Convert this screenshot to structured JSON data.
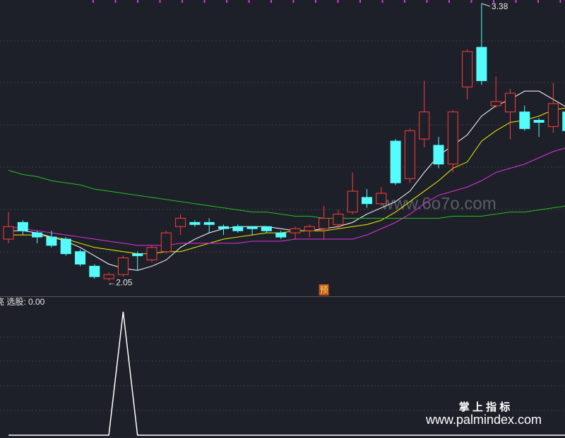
{
  "chart_data": [
    {
      "type": "candlestick",
      "ylim": [
        1.976,
        3.397
      ],
      "open": [
        2.25,
        2.33,
        2.28,
        2.26,
        2.25,
        2.19,
        2.12,
        2.06,
        2.08,
        2.18,
        2.15,
        2.19,
        2.31,
        2.33,
        2.33,
        2.31,
        2.31,
        2.31,
        2.31,
        2.28,
        2.28,
        2.29,
        2.3,
        2.32,
        2.38,
        2.45,
        2.42,
        2.72,
        2.54,
        2.73,
        2.7,
        2.61,
        2.98,
        3.17,
        2.89,
        2.86,
        2.86,
        2.82,
        2.79,
        2.86
      ],
      "high": [
        2.38,
        2.34,
        2.29,
        2.29,
        2.26,
        2.2,
        2.13,
        2.09,
        2.17,
        2.19,
        2.22,
        2.29,
        2.37,
        2.34,
        2.35,
        2.32,
        2.32,
        2.31,
        2.31,
        2.29,
        2.31,
        2.32,
        2.41,
        2.39,
        2.57,
        2.49,
        2.5,
        2.73,
        2.78,
        3.01,
        2.74,
        2.87,
        3.16,
        3.38,
        3.03,
        2.97,
        2.89,
        2.83,
        3.0,
        2.87
      ],
      "low": [
        2.23,
        2.27,
        2.23,
        2.21,
        2.17,
        2.12,
        2.06,
        2.05,
        2.07,
        2.1,
        2.14,
        2.18,
        2.27,
        2.31,
        2.28,
        2.27,
        2.28,
        2.27,
        2.28,
        2.25,
        2.25,
        2.26,
        2.25,
        2.3,
        2.37,
        2.4,
        2.41,
        2.51,
        2.52,
        2.69,
        2.59,
        2.57,
        2.92,
        2.99,
        2.88,
        2.73,
        2.77,
        2.74,
        2.76,
        2.76
      ],
      "close": [
        2.31,
        2.29,
        2.26,
        2.22,
        2.18,
        2.13,
        2.07,
        2.08,
        2.16,
        2.17,
        2.21,
        2.28,
        2.35,
        2.32,
        2.32,
        2.3,
        2.29,
        2.3,
        2.29,
        2.26,
        2.3,
        2.31,
        2.35,
        2.37,
        2.48,
        2.42,
        2.47,
        2.52,
        2.77,
        2.86,
        2.61,
        2.86,
        3.15,
        3.01,
        2.91,
        2.95,
        2.78,
        2.81,
        2.9,
        2.77
      ],
      "up_color": "#ff3c3c",
      "down_color": "#54fcfc",
      "series": [
        {
          "color": "#ffffff",
          "values": [
            2.29,
            2.29,
            2.28,
            2.26,
            2.24,
            2.21,
            2.17,
            2.13,
            2.11,
            2.1,
            2.12,
            2.15,
            2.21,
            2.25,
            2.28,
            2.3,
            2.31,
            2.31,
            2.31,
            2.3,
            2.29,
            2.29,
            2.3,
            2.31,
            2.33,
            2.37,
            2.4,
            2.43,
            2.48,
            2.57,
            2.65,
            2.7,
            2.75,
            2.84,
            2.89,
            2.92,
            2.96,
            2.96,
            2.92,
            2.88
          ]
        },
        {
          "color": "#f0f000",
          "values": [
            2.27,
            2.27,
            2.27,
            2.26,
            2.25,
            2.23,
            2.21,
            2.2,
            2.19,
            2.18,
            2.18,
            2.19,
            2.19,
            2.21,
            2.23,
            2.25,
            2.26,
            2.27,
            2.28,
            2.28,
            2.29,
            2.29,
            2.29,
            2.3,
            2.31,
            2.32,
            2.34,
            2.38,
            2.43,
            2.48,
            2.53,
            2.59,
            2.62,
            2.72,
            2.77,
            2.81,
            2.82,
            2.84,
            2.87,
            2.88
          ]
        },
        {
          "color": "#e030e0",
          "values": [
            2.31,
            2.3,
            2.29,
            2.28,
            2.27,
            2.26,
            2.25,
            2.24,
            2.23,
            2.22,
            2.22,
            2.22,
            2.23,
            2.23,
            2.23,
            2.23,
            2.23,
            2.24,
            2.24,
            2.24,
            2.25,
            2.25,
            2.25,
            2.25,
            2.25,
            2.27,
            2.3,
            2.33,
            2.37,
            2.42,
            2.46,
            2.48,
            2.5,
            2.53,
            2.57,
            2.59,
            2.61,
            2.64,
            2.67,
            2.69
          ]
        },
        {
          "color": "#20c020",
          "values": [
            2.58,
            2.56,
            2.55,
            2.53,
            2.52,
            2.51,
            2.49,
            2.48,
            2.47,
            2.46,
            2.45,
            2.44,
            2.43,
            2.42,
            2.41,
            2.4,
            2.39,
            2.38,
            2.38,
            2.37,
            2.36,
            2.36,
            2.35,
            2.35,
            2.35,
            2.35,
            2.35,
            2.35,
            2.35,
            2.35,
            2.35,
            2.36,
            2.36,
            2.36,
            2.37,
            2.38,
            2.38,
            2.39,
            2.4,
            2.41
          ]
        }
      ],
      "high_label": "3.38",
      "low_label": "←2.05",
      "marker": "预",
      "watermark": "www.6o7o.com"
    },
    {
      "type": "line",
      "label": "亮 选股: 0.00",
      "ylim": [
        0,
        1.12
      ],
      "color": "#ffffff",
      "values": [
        0,
        0,
        0,
        0,
        0,
        0,
        0,
        0,
        1,
        0,
        0,
        0,
        0,
        0,
        0,
        0,
        0,
        0,
        0,
        0,
        0,
        0,
        0,
        0,
        0,
        0,
        0,
        0,
        0,
        0,
        0,
        0,
        0,
        0,
        0,
        0,
        0,
        0,
        0,
        0
      ],
      "brand": "掌 上 指 标",
      "site": "www.palmindex.com"
    }
  ]
}
